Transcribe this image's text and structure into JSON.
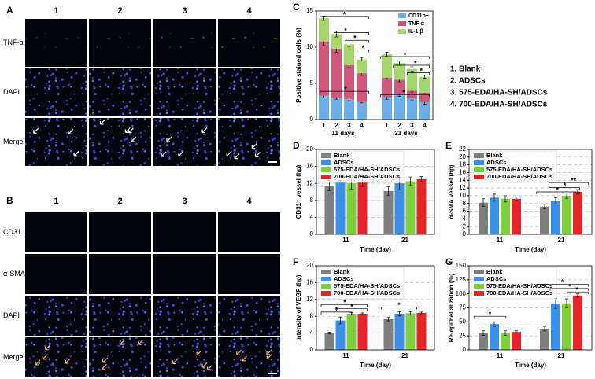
{
  "image_panels": [
    {
      "letter": "A",
      "columns": [
        "1",
        "2",
        "3",
        "4"
      ],
      "rows": [
        "TNF-α",
        "DAPI",
        "Merge"
      ]
    },
    {
      "letter": "B",
      "columns": [
        "1",
        "2",
        "3",
        "4"
      ],
      "rows": [
        "CD31",
        "α-SMA",
        "DAPI",
        "Merge"
      ]
    }
  ],
  "group_legend": [
    "1. Blank",
    "2. ADSCs",
    "3. 575-EDA/HA-SH/ADSCs",
    "4. 700-EDA/HA-SH/ADSCs"
  ],
  "chart_data": [
    {
      "type": "stacked_bar",
      "panel": "C",
      "ylabel": "Positive stained cells (%)",
      "categories": [
        "1",
        "2",
        "3",
        "4",
        "1",
        "2",
        "3",
        "4"
      ],
      "groups": [
        "11 days",
        "21 days"
      ],
      "ylim": [
        0,
        15
      ],
      "yticks": [
        0,
        5,
        10,
        15
      ],
      "legend": "upper right",
      "series": [
        {
          "name": "CD11b+",
          "color": "#6aaeea",
          "values": [
            3.3,
            3.0,
            2.8,
            2.4,
            3.1,
            3.5,
            3.0,
            2.4
          ],
          "errors": [
            0.3,
            0.2,
            0.2,
            0.1,
            0.3,
            0.3,
            0.3,
            0.3
          ]
        },
        {
          "name": "TNF α",
          "color": "#d2587a",
          "values": [
            7.5,
            6.8,
            4.7,
            4.0,
            2.7,
            2.0,
            1.0,
            1.3
          ],
          "errors": [
            0.6,
            0.5,
            0.3,
            0.3,
            0.2,
            0.3,
            0.2,
            0.2
          ]
        },
        {
          "name": "IL-1 β",
          "color": "#a5d86a",
          "values": [
            3.2,
            2.0,
            2.9,
            1.9,
            3.2,
            2.3,
            3.0,
            2.2
          ],
          "errors": [
            0.3,
            0.4,
            0.3,
            0.2,
            0.3,
            0.3,
            0.3,
            0.2
          ]
        }
      ],
      "annotations": [
        "*",
        "*",
        "*",
        "*",
        "*",
        "*",
        "*",
        "*",
        "*"
      ]
    },
    {
      "type": "bar",
      "panel": "D",
      "ylabel": "CD31⁺ vessel (hp)",
      "xlabel": "Time (day)",
      "categories": [
        "11",
        "21"
      ],
      "ylim": [
        0,
        20
      ],
      "yticks": [
        0,
        4,
        8,
        12,
        16,
        20
      ],
      "grid": true,
      "legend": "upper left",
      "series": [
        {
          "name": "Blank",
          "color": "#7f7f7f",
          "values": [
            11.5,
            10.2
          ],
          "errors": [
            1.2,
            1.0
          ]
        },
        {
          "name": "ADSCs",
          "color": "#3b8fe8",
          "values": [
            12.5,
            12.0
          ],
          "errors": [
            0.2,
            1.5
          ]
        },
        {
          "name": "575-EDA/HA-SH/ADSCs",
          "color": "#7ed03a",
          "values": [
            12.0,
            12.5
          ],
          "errors": [
            1.3,
            1.0
          ]
        },
        {
          "name": "700-EDA/HA-SH/ADSCs",
          "color": "#e8232a",
          "values": [
            12.5,
            13.0
          ],
          "errors": [
            1.3,
            0.6
          ]
        }
      ],
      "annotations": []
    },
    {
      "type": "bar",
      "panel": "E",
      "ylabel": "α-SMA vessel (hp)",
      "xlabel": "Time (day)",
      "categories": [
        "11",
        "21"
      ],
      "ylim": [
        0,
        22
      ],
      "yticks": [
        0,
        2,
        4,
        6,
        8,
        10,
        12,
        14,
        16,
        18,
        20,
        22
      ],
      "grid": true,
      "legend": "upper left",
      "series": [
        {
          "name": "Blank",
          "color": "#7f7f7f",
          "values": [
            8.2,
            7.2
          ],
          "errors": [
            1.0,
            0.6
          ]
        },
        {
          "name": "ADSCs",
          "color": "#3b8fe8",
          "values": [
            9.5,
            8.7
          ],
          "errors": [
            0.9,
            0.8
          ]
        },
        {
          "name": "575-EDA/HA-SH/ADSCs",
          "color": "#7ed03a",
          "values": [
            9.2,
            10.0
          ],
          "errors": [
            0.8,
            0.7
          ]
        },
        {
          "name": "700-EDA/HA-SH/ADSCs",
          "color": "#e8232a",
          "values": [
            9.2,
            11.0
          ],
          "errors": [
            0.5,
            0.6
          ]
        }
      ],
      "annotations": [
        "**",
        "*",
        "*"
      ]
    },
    {
      "type": "bar",
      "panel": "F",
      "ylabel": "Intensity of VEGF (hp)",
      "xlabel": "Time (day)",
      "categories": [
        "11",
        "21"
      ],
      "ylim": [
        0,
        20
      ],
      "yticks": [
        0,
        4,
        8,
        12,
        16,
        20
      ],
      "grid": true,
      "legend": "upper left",
      "series": [
        {
          "name": "Blank",
          "color": "#7f7f7f",
          "values": [
            4.0,
            7.3
          ],
          "errors": [
            0.2,
            0.4
          ]
        },
        {
          "name": "ADSCs",
          "color": "#3b8fe8",
          "values": [
            7.0,
            8.6
          ],
          "errors": [
            0.8,
            0.5
          ]
        },
        {
          "name": "575-EDA/HA-SH/ADSCs",
          "color": "#7ed03a",
          "values": [
            8.6,
            8.7
          ],
          "errors": [
            0.3,
            0.4
          ]
        },
        {
          "name": "700-EDA/HA-SH/ADSCs",
          "color": "#e8232a",
          "values": [
            8.6,
            8.8
          ],
          "errors": [
            0.2,
            0.2
          ]
        }
      ],
      "annotations": [
        "*",
        "*",
        "*",
        "*"
      ]
    },
    {
      "type": "bar",
      "panel": "G",
      "ylabel": "Re-epithelialization (%)",
      "xlabel": "Time (day)",
      "categories": [
        "11",
        "21"
      ],
      "ylim": [
        0,
        150
      ],
      "yticks": [
        0,
        25,
        50,
        75,
        100,
        125,
        150
      ],
      "grid": true,
      "legend": "upper left",
      "series": [
        {
          "name": "Blank",
          "color": "#7f7f7f",
          "values": [
            30,
            38
          ],
          "errors": [
            4,
            4
          ]
        },
        {
          "name": "ADSCs",
          "color": "#3b8fe8",
          "values": [
            46,
            83
          ],
          "errors": [
            4,
            9
          ]
        },
        {
          "name": "575-EDA/HA-SH/ADSCs",
          "color": "#7ed03a",
          "values": [
            30,
            83
          ],
          "errors": [
            4,
            8
          ]
        },
        {
          "name": "700-EDA/HA-SH/ADSCs",
          "color": "#e8232a",
          "values": [
            32,
            97
          ],
          "errors": [
            2,
            3
          ]
        }
      ],
      "annotations": [
        "*",
        "*",
        "*",
        "*"
      ]
    }
  ]
}
